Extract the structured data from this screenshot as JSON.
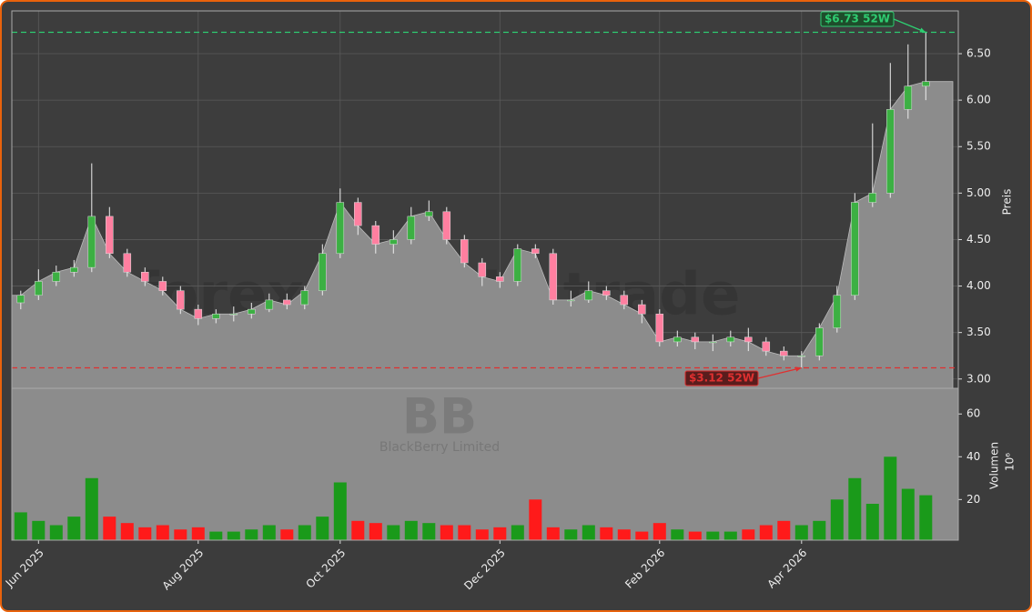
{
  "chart_data": {
    "type": "candlestick",
    "ticker": "BB",
    "company": "BlackBerry Limited",
    "watermark": "forexsignale.trade",
    "categories": [
      null,
      "Jun 2025",
      null,
      null,
      null,
      null,
      null,
      null,
      null,
      null,
      "Aug 2025",
      null,
      null,
      null,
      null,
      null,
      null,
      null,
      "Oct 2025",
      null,
      null,
      null,
      null,
      null,
      null,
      null,
      null,
      "Dec 2025",
      null,
      null,
      null,
      null,
      null,
      null,
      null,
      null,
      "Feb 2026",
      null,
      null,
      null,
      null,
      null,
      null,
      null,
      "Apr 2026",
      null,
      null,
      null,
      null,
      null,
      null,
      null
    ],
    "open": [
      3.82,
      3.9,
      4.05,
      4.15,
      4.2,
      4.75,
      4.35,
      4.15,
      4.05,
      3.95,
      3.75,
      3.65,
      3.7,
      3.7,
      3.75,
      3.85,
      3.8,
      3.95,
      4.35,
      4.9,
      4.65,
      4.45,
      4.5,
      4.75,
      4.8,
      4.5,
      4.25,
      4.1,
      4.05,
      4.4,
      4.35,
      3.85,
      3.85,
      3.95,
      3.9,
      3.8,
      3.7,
      3.4,
      3.45,
      3.4,
      3.4,
      3.45,
      3.4,
      3.3,
      3.25,
      3.25,
      3.55,
      3.9,
      4.9,
      5.0,
      5.9,
      6.15
    ],
    "high": [
      3.95,
      4.18,
      4.22,
      4.28,
      5.32,
      4.85,
      4.4,
      4.2,
      4.1,
      4.0,
      3.8,
      3.75,
      3.78,
      3.82,
      3.92,
      3.92,
      4.0,
      4.45,
      5.05,
      4.95,
      4.7,
      4.6,
      4.85,
      4.92,
      4.85,
      4.55,
      4.3,
      4.15,
      4.45,
      4.45,
      4.4,
      3.95,
      4.05,
      4.0,
      3.95,
      3.85,
      3.75,
      3.52,
      3.5,
      3.48,
      3.52,
      3.55,
      3.45,
      3.35,
      3.3,
      3.6,
      4.0,
      5.0,
      5.75,
      6.4,
      6.6,
      6.73
    ],
    "low": [
      3.75,
      3.85,
      4.0,
      4.1,
      4.15,
      4.3,
      4.1,
      4.0,
      3.9,
      3.7,
      3.58,
      3.6,
      3.62,
      3.65,
      3.72,
      3.75,
      3.75,
      3.9,
      4.3,
      4.55,
      4.35,
      4.35,
      4.45,
      4.7,
      4.45,
      4.2,
      4.0,
      3.98,
      4.0,
      4.3,
      3.8,
      3.78,
      3.82,
      3.85,
      3.75,
      3.6,
      3.35,
      3.35,
      3.32,
      3.3,
      3.35,
      3.3,
      3.25,
      3.2,
      3.12,
      3.2,
      3.5,
      3.85,
      4.85,
      4.95,
      5.8,
      6.0
    ],
    "close": [
      3.9,
      4.05,
      4.15,
      4.2,
      4.75,
      4.35,
      4.15,
      4.05,
      3.95,
      3.75,
      3.65,
      3.7,
      3.7,
      3.75,
      3.85,
      3.8,
      3.95,
      4.35,
      4.9,
      4.65,
      4.45,
      4.5,
      4.75,
      4.8,
      4.5,
      4.25,
      4.1,
      4.05,
      4.4,
      4.35,
      3.85,
      3.85,
      3.95,
      3.9,
      3.8,
      3.7,
      3.4,
      3.45,
      3.4,
      3.4,
      3.45,
      3.4,
      3.3,
      3.25,
      3.25,
      3.55,
      3.9,
      4.9,
      5.0,
      5.9,
      6.15,
      6.2
    ],
    "up_color": "#3cb043",
    "down_color": "#ff7fa0",
    "area_color": "#8c8c8c",
    "ylabel": "Preis",
    "ylim": [
      2.9,
      6.96
    ],
    "yticks": [
      {
        "value": 3,
        "label": "3.00"
      },
      {
        "value": 3.5,
        "label": "3.50"
      },
      {
        "value": 4,
        "label": "4.00"
      },
      {
        "value": 4.5,
        "label": "4.50"
      },
      {
        "value": 5,
        "label": "5.00"
      },
      {
        "value": 5.5,
        "label": "5.50"
      },
      {
        "value": 6,
        "label": "6.00"
      },
      {
        "value": 6.5,
        "label": "6.50"
      }
    ],
    "grid": true,
    "volume": {
      "values": [
        14,
        10,
        8,
        12,
        30,
        12,
        9,
        7,
        8,
        6,
        7,
        5,
        5,
        6,
        8,
        6,
        8,
        12,
        28,
        10,
        9,
        8,
        10,
        9,
        8,
        8,
        6,
        7,
        8,
        20,
        7,
        6,
        8,
        7,
        6,
        5,
        9,
        6,
        5,
        5,
        5,
        6,
        8,
        10,
        8,
        10,
        20,
        30,
        18,
        40,
        25,
        22
      ],
      "up_color": "#1a9a1a",
      "down_color": "#ff1a1a",
      "ylabel": "Volumen",
      "unit": "10⁶",
      "ylim": [
        1,
        72
      ],
      "yticks": [
        20,
        40,
        60
      ]
    },
    "high_52w": {
      "value": 6.73,
      "label": "$6.73 52W",
      "color": "#2ecc71"
    },
    "low_52w": {
      "value": 3.12,
      "label": "$3.12 52W",
      "color": "#e03030"
    }
  }
}
